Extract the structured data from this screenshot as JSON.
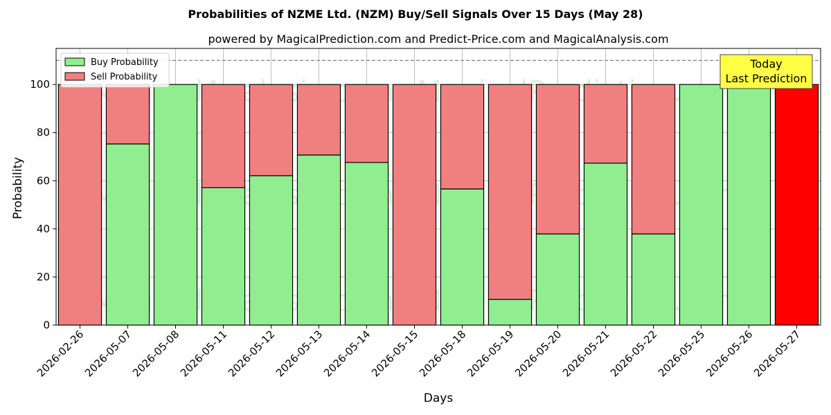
{
  "chart_data": {
    "type": "bar",
    "stacked": true,
    "title": "Probabilities of NZME Ltd. (NZM) Buy/Sell Signals Over 15 Days (May 28)",
    "subtitle": "powered by MagicalPrediction.com and Predict-Price.com and MagicalAnalysis.com",
    "xlabel": "Days",
    "ylabel": "Probability",
    "ylim": [
      0,
      115
    ],
    "yticks": [
      0,
      20,
      40,
      60,
      80,
      100
    ],
    "grid": true,
    "legend_position": "top-left",
    "reference_line": 110,
    "categories": [
      "2026-02-26",
      "2026-05-07",
      "2026-05-08",
      "2026-05-11",
      "2026-05-12",
      "2026-05-13",
      "2026-05-14",
      "2026-05-15",
      "2026-05-18",
      "2026-05-19",
      "2026-05-20",
      "2026-05-21",
      "2026-05-22",
      "2026-05-25",
      "2026-05-26",
      "2026-05-27"
    ],
    "series": [
      {
        "name": "Buy Probability",
        "color": "#90ee90",
        "values": [
          0,
          75.3,
          100,
          57.1,
          62.1,
          70.7,
          67.6,
          0,
          56.6,
          10.7,
          37.9,
          67.3,
          37.9,
          100,
          100,
          0
        ]
      },
      {
        "name": "Sell Probability",
        "color": "#f08080",
        "values": [
          100,
          24.7,
          0,
          42.9,
          37.9,
          29.3,
          32.4,
          100,
          43.4,
          89.3,
          62.1,
          32.7,
          62.1,
          0,
          0,
          100
        ]
      }
    ],
    "highlight": {
      "index": 15,
      "color": "#ff0000"
    },
    "annotation": {
      "lines": [
        "Today",
        "Last Prediction"
      ],
      "background": "#ffff44"
    },
    "watermarks": [
      "MagicalAnalysis.com",
      "MagicalPrediction.com"
    ]
  }
}
